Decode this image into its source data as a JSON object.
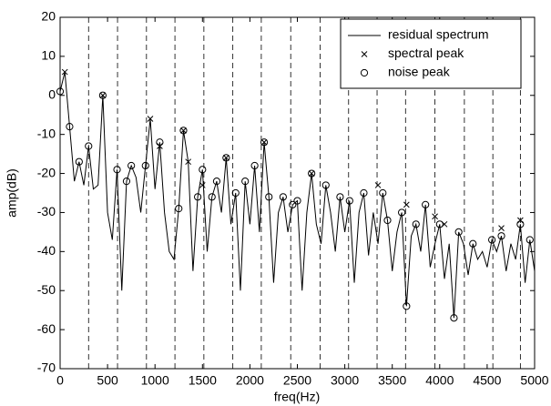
{
  "chart_data": {
    "type": "line",
    "xlabel": "freq(Hz)",
    "ylabel": "amp(dB)",
    "xlim": [
      0,
      5000
    ],
    "xticks": [
      0,
      500,
      1000,
      1500,
      2000,
      2500,
      3000,
      3500,
      4000,
      4500,
      5000
    ],
    "ylim": [
      -70,
      20
    ],
    "yticks": [
      -70,
      -60,
      -50,
      -40,
      -30,
      -20,
      -10,
      0,
      10,
      20
    ],
    "grid": false,
    "legend": "upper right",
    "vlines": [
      300,
      605,
      910,
      1210,
      1515,
      1820,
      2120,
      2430,
      2740,
      3040,
      3340,
      3640,
      3950,
      4260,
      4560,
      4850
    ],
    "series": [
      {
        "name": "residual spectrum",
        "color": "#000000",
        "marker": "none",
        "x": [
          0,
          50,
          100,
          150,
          200,
          250,
          300,
          350,
          400,
          450,
          500,
          550,
          600,
          650,
          700,
          750,
          800,
          850,
          900,
          950,
          1000,
          1050,
          1100,
          1150,
          1200,
          1250,
          1300,
          1350,
          1400,
          1450,
          1500,
          1550,
          1600,
          1650,
          1700,
          1750,
          1800,
          1850,
          1900,
          1950,
          2000,
          2050,
          2100,
          2150,
          2200,
          2250,
          2300,
          2350,
          2400,
          2450,
          2500,
          2550,
          2600,
          2650,
          2700,
          2750,
          2800,
          2850,
          2900,
          2950,
          3000,
          3050,
          3100,
          3150,
          3200,
          3250,
          3300,
          3350,
          3400,
          3450,
          3500,
          3550,
          3600,
          3650,
          3700,
          3750,
          3800,
          3850,
          3900,
          3950,
          4000,
          4050,
          4100,
          4150,
          4200,
          4250,
          4300,
          4350,
          4400,
          4450,
          4500,
          4550,
          4600,
          4650,
          4700,
          4750,
          4800,
          4850,
          4900,
          4950,
          5000
        ],
        "values": [
          1,
          6,
          -8,
          -22,
          -17,
          -23,
          -13,
          -24,
          -23,
          0,
          -30,
          -37,
          -19,
          -50,
          -22,
          -18,
          -21,
          -30,
          -18,
          -6,
          -24,
          -12,
          -30,
          -40,
          -42,
          -29,
          -9,
          -17,
          -45,
          -26,
          -19,
          -40,
          -26,
          -22,
          -30,
          -16,
          -33,
          -25,
          -50,
          -22,
          -33,
          -18,
          -35,
          -12,
          -26,
          -48,
          -30,
          -26,
          -35,
          -28,
          -27,
          -50,
          -30,
          -20,
          -33,
          -38,
          -23,
          -30,
          -40,
          -26,
          -35,
          -27,
          -48,
          -30,
          -25,
          -41,
          -30,
          -38,
          -25,
          -32,
          -45,
          -35,
          -30,
          -54,
          -36,
          -33,
          -40,
          -28,
          -44,
          -38,
          -33,
          -47,
          -38,
          -57,
          -35,
          -38,
          -46,
          -38,
          -42,
          -40,
          -44,
          -37,
          -40,
          -36,
          -45,
          -38,
          -42,
          -33,
          -48,
          -37,
          -45
        ]
      },
      {
        "name": "spectral peak",
        "color": "#000000",
        "marker": "x",
        "x": [
          50,
          450,
          950,
          1050,
          1300,
          1350,
          1500,
          1750,
          2150,
          2650,
          3350,
          3650,
          3950,
          4050,
          4650,
          4850
        ],
        "values": [
          6,
          0,
          -6,
          -13,
          -9,
          -17,
          -23,
          -16,
          -12,
          -20,
          -23,
          -28,
          -31,
          -33,
          -34,
          -32
        ]
      },
      {
        "name": "noise peak",
        "color": "#000000",
        "marker": "o",
        "x": [
          0,
          100,
          200,
          300,
          450,
          600,
          700,
          750,
          900,
          1050,
          1250,
          1300,
          1450,
          1500,
          1600,
          1650,
          1750,
          1850,
          1950,
          2050,
          2150,
          2200,
          2350,
          2450,
          2500,
          2650,
          2800,
          2950,
          3050,
          3200,
          3400,
          3450,
          3600,
          3650,
          3750,
          3850,
          4000,
          4150,
          4200,
          4350,
          4550,
          4650,
          4850,
          4950
        ],
        "values": [
          1,
          -8,
          -17,
          -13,
          0,
          -19,
          -22,
          -18,
          -18,
          -12,
          -29,
          -9,
          -26,
          -19,
          -26,
          -22,
          -16,
          -25,
          -22,
          -18,
          -12,
          -26,
          -26,
          -28,
          -27,
          -20,
          -23,
          -26,
          -27,
          -25,
          -25,
          -32,
          -30,
          -54,
          -33,
          -28,
          -33,
          -57,
          -35,
          -38,
          -37,
          -36,
          -33,
          -37
        ]
      }
    ]
  }
}
